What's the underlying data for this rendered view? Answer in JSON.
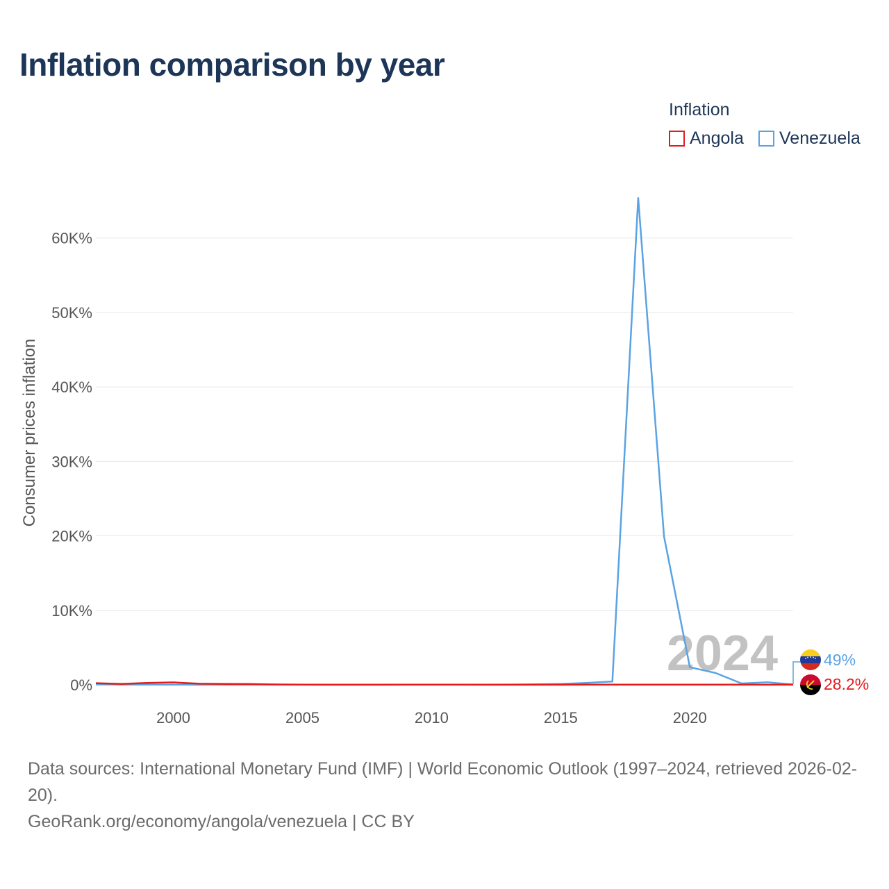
{
  "title": "Inflation comparison by year",
  "legend": {
    "title": "Inflation",
    "items": [
      {
        "label": "Angola",
        "color": "#e31b1b"
      },
      {
        "label": "Venezuela",
        "color": "#5aa3e3"
      }
    ]
  },
  "chart_data": {
    "type": "line",
    "title": "Inflation comparison by year",
    "ylabel": "Consumer prices inflation",
    "xlabel": "",
    "x": [
      1997,
      1998,
      1999,
      2000,
      2001,
      2002,
      2003,
      2004,
      2005,
      2006,
      2007,
      2008,
      2009,
      2010,
      2011,
      2012,
      2013,
      2014,
      2015,
      2016,
      2017,
      2018,
      2019,
      2020,
      2021,
      2022,
      2023,
      2024
    ],
    "xlim": [
      1997,
      2024
    ],
    "ylim": [
      0,
      65000
    ],
    "xticks": [
      2000,
      2005,
      2010,
      2015,
      2020
    ],
    "xtick_labels": [
      "2000",
      "2005",
      "2010",
      "2015",
      "2020"
    ],
    "yticks": [
      0,
      10000,
      20000,
      30000,
      40000,
      50000,
      60000
    ],
    "ytick_labels": [
      "0%",
      "10K%",
      "20K%",
      "30K%",
      "40K%",
      "50K%",
      "60K%"
    ],
    "series": [
      {
        "name": "Angola",
        "color": "#e31b1b",
        "values": [
          221,
          108,
          248,
          325,
          153,
          109,
          98,
          44,
          23,
          13,
          12,
          12,
          14,
          14,
          14,
          10,
          9,
          7,
          9,
          30,
          30,
          20,
          17,
          22,
          26,
          21,
          13,
          28.2
        ],
        "end_label": "28.2%"
      },
      {
        "name": "Venezuela",
        "color": "#5aa3e3",
        "values": [
          50,
          36,
          24,
          16,
          13,
          22,
          31,
          22,
          16,
          14,
          19,
          31,
          27,
          28,
          26,
          21,
          41,
          62,
          122,
          255,
          438,
          65374,
          19906,
          2355,
          1588,
          186,
          337,
          49
        ],
        "end_label": "49%"
      }
    ],
    "annotation": "2024"
  },
  "source": {
    "line1": "Data sources: International Monetary Fund (IMF) | World Economic Outlook (1997–2024, retrieved 2026-02-20).",
    "line2": "GeoRank.org/economy/angola/venezuela | CC BY"
  }
}
